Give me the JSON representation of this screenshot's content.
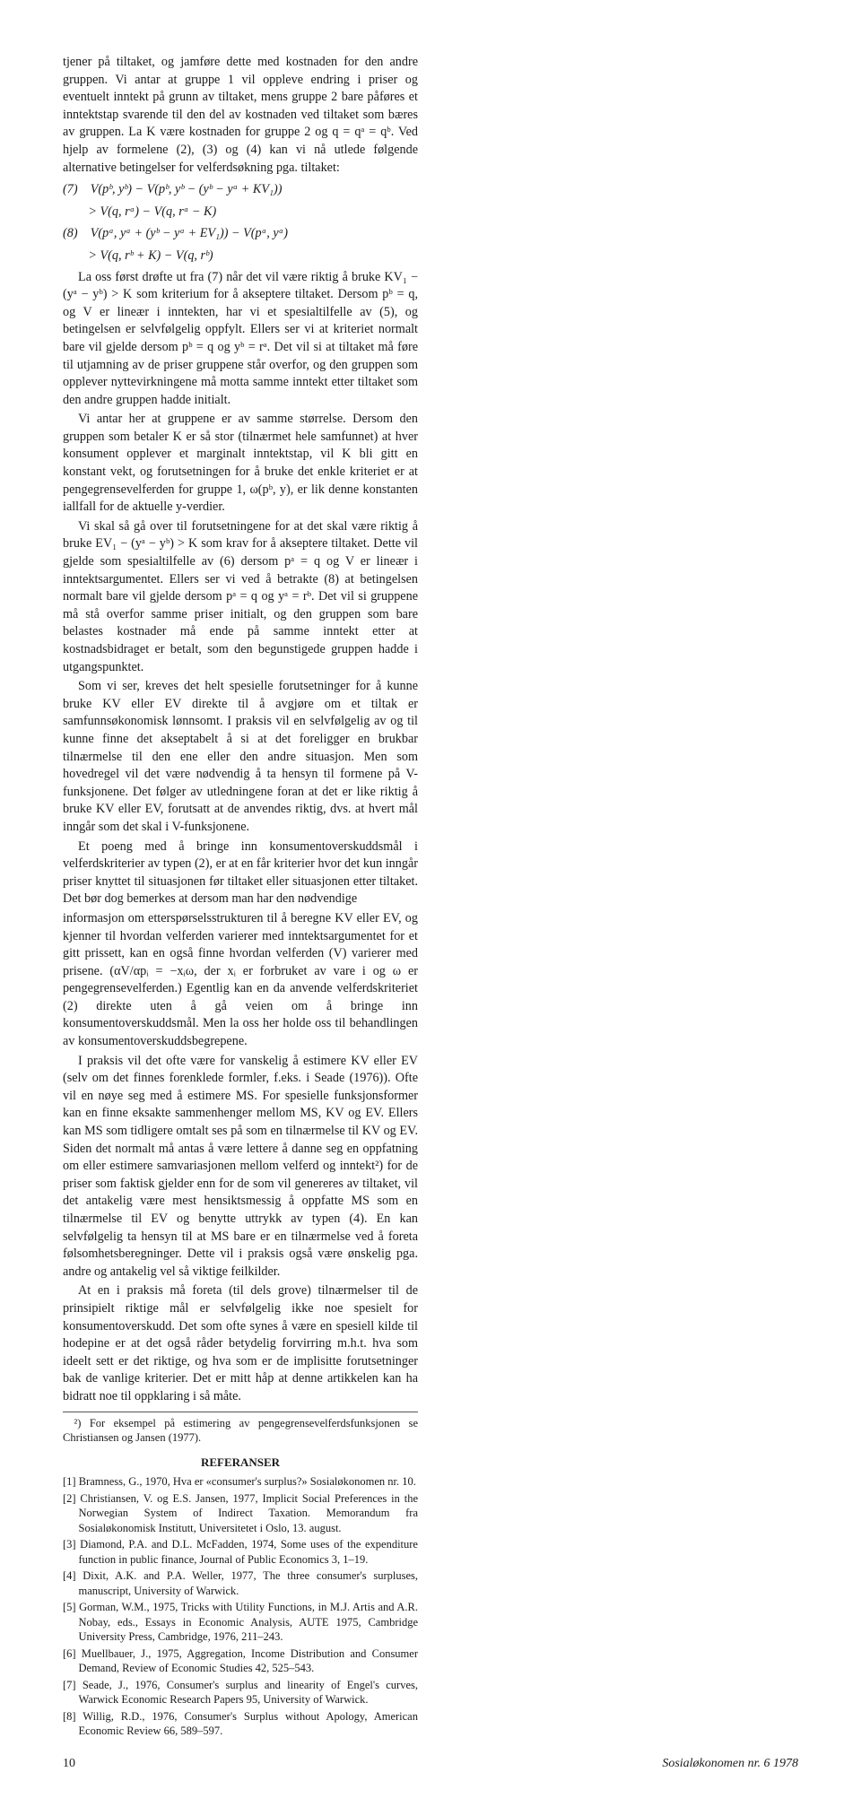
{
  "col1": {
    "p1": "tjener på tiltaket, og jamføre dette med kostnaden for den andre gruppen. Vi antar at gruppe 1 vil oppleve endring i priser og eventuelt inntekt på grunn av tiltaket, mens gruppe 2 bare påføres et inntektstap svarende til den del av kostnaden ved tiltaket som bæres av gruppen. La K være kostnaden for gruppe 2 og q = qᵃ = qᵇ. Ved hjelp av formelene (2), (3) og (4) kan vi nå utlede følgende alternative betingelser for velferdsøkning pga. tiltaket:",
    "f7a": "(7) V(pᵇ, yᵇ) − V(pᵇ, yᵇ − (yᵇ − yᵃ + KV₁))",
    "f7b": "  > V(q, rᵃ) − V(q, rᵃ − K)",
    "f8a": "(8) V(pᵃ, yᵃ + (yᵇ − yᵃ + EV₁)) − V(pᵃ, yᵃ)",
    "f8b": "  > V(q, rᵇ + K) − V(q, rᵇ)",
    "p2": "La oss først drøfte ut fra (7) når det vil være riktig å bruke KV₁ − (yᵃ − yᵇ) > K som kriterium for å akseptere tiltaket. Dersom pᵇ = q, og V er lineær i inntekten, har vi et spesialtilfelle av (5), og betingelsen er selvfølgelig oppfylt. Ellers ser vi at kriteriet normalt bare vil gjelde dersom pᵇ = q og yᵇ = rᵃ. Det vil si at tiltaket må føre til utjamning av de priser gruppene står overfor, og den gruppen som opplever nyttevirkningene må motta samme inntekt etter tiltaket som den andre gruppen hadde initialt.",
    "p3": "Vi antar her at gruppene er av samme størrelse. Dersom den gruppen som betaler K er så stor (tilnærmet hele samfunnet) at hver konsument opplever et marginalt inntektstap, vil K bli gitt en konstant vekt, og forutsetningen for å bruke det enkle kriteriet er at pengegrensevelferden for gruppe 1, ω(pᵇ, y), er lik denne konstanten iallfall for de aktuelle y-verdier.",
    "p4": "Vi skal så gå over til forutsetningene for at det skal være riktig å bruke EV₁ − (yᵃ − yᵇ) > K som krav for å akseptere tiltaket. Dette vil gjelde som spesialtilfelle av (6) dersom pᵃ = q og V er lineær i inntektsargumentet. Ellers ser vi ved å betrakte (8) at betingelsen normalt bare vil gjelde dersom pᵃ = q og yᵃ = rᵇ. Det vil si gruppene må stå overfor samme priser initialt, og den gruppen som bare belastes kostnader må ende på samme inntekt etter at kostnadsbidraget er betalt, som den begunstigede gruppen hadde i utgangspunktet.",
    "p5": "Som vi ser, kreves det helt spesielle forutsetninger for å kunne bruke KV eller EV direkte til å avgjøre om et tiltak er samfunnsøkonomisk lønnsomt. I praksis vil en selvfølgelig av og til kunne finne det akseptabelt å si at det foreligger en brukbar tilnærmelse til den ene eller den andre situasjon. Men som hovedregel vil det være nødvendig å ta hensyn til formene på V-funksjonene. Det følger av utledningene foran at det er like riktig å bruke KV eller EV, forutsatt at de anvendes riktig, dvs. at hvert mål inngår som det skal i V-funksjonene.",
    "p6": "Et poeng med å bringe inn konsumentoverskuddsmål i velferdskriterier av typen (2), er at en får kriterier hvor det kun inngår priser knyttet til situasjonen før tiltaket eller situasjonen etter tiltaket. Det bør dog bemerkes at dersom man har den nødvendige"
  },
  "col2": {
    "p1": "informasjon om etterspørselsstrukturen til å beregne KV eller EV, og kjenner til hvordan velferden varierer med inntektsargumentet for et gitt prissett, kan en også finne hvordan velferden (V) varierer med prisene. (αV/αpᵢ = −xᵢω, der xᵢ er forbruket av vare i og ω er pengegrensevelferden.) Egentlig kan en da anvende velferdskriteriet (2) direkte uten å gå veien om å bringe inn konsumentoverskuddsmål. Men la oss her holde oss til behandlingen av konsumentoverskuddsbegrepene.",
    "p2": "I praksis vil det ofte være for vanskelig å estimere KV eller EV (selv om det finnes forenklede formler, f.eks. i Seade (1976)). Ofte vil en nøye seg med å estimere MS. For spesielle funksjonsformer kan en finne eksakte sammenhenger mellom MS, KV og EV. Ellers kan MS som tidligere omtalt ses på som en tilnærmelse til KV og EV. Siden det normalt må antas å være lettere å danne seg en oppfatning om eller estimere samvariasjonen mellom velferd og inntekt²) for de priser som faktisk gjelder enn for de som vil genereres av tiltaket, vil det antakelig være mest hensiktsmessig å oppfatte MS som en tilnærmelse til EV og benytte uttrykk av typen (4). En kan selvfølgelig ta hensyn til at MS bare er en tilnærmelse ved å foreta følsomhetsberegninger. Dette vil i praksis også være ønskelig pga. andre og antakelig vel så viktige feilkilder.",
    "p3": "At en i praksis må foreta (til dels grove) tilnærmelser til de prinsipielt riktige mål er selvfølgelig ikke noe spesielt for konsumentoverskudd. Det som ofte synes å være en spesiell kilde til hodepine er at det også råder betydelig forvirring m.h.t. hva som ideelt sett er det riktige, og hva som er de implisitte forutsetninger bak de vanlige kriterier. Det er mitt håp at denne artikkelen kan ha bidratt noe til oppklaring i så måte.",
    "fn": "²) For eksempel på estimering av pengegrensevelferdsfunksjonen se Christiansen og Jansen (1977).",
    "refheader": "REFERANSER",
    "refs": [
      "[1] Bramness, G., 1970, Hva er «consumer's surplus?» Sosialøkonomen nr. 10.",
      "[2] Christiansen, V. og E.S. Jansen, 1977, Implicit Social Preferences in the Norwegian System of Indirect Taxation. Memorandum fra Sosialøkonomisk Institutt, Universitetet i Oslo, 13. august.",
      "[3] Diamond, P.A. and D.L. McFadden, 1974, Some uses of the expenditure function in public finance, Journal of Public Economics 3, 1–19.",
      "[4] Dixit, A.K. and P.A. Weller, 1977, The three consumer's surpluses, manuscript, University of Warwick.",
      "[5] Gorman, W.M., 1975, Tricks with Utility Functions, in M.J. Artis and A.R. Nobay, eds., Essays in Economic Analysis, AUTE 1975, Cambridge University Press, Cambridge, 1976, 211–243.",
      "[6] Muellbauer, J., 1975, Aggregation, Income Distribution and Consumer Demand, Review of Economic Studies 42, 525–543.",
      "[7] Seade, J., 1976, Consumer's surplus and linearity of Engel's curves, Warwick Economic Research Papers 95, University of Warwick.",
      "[8] Willig, R.D., 1976, Consumer's Surplus without Apology, American Economic Review 66, 589–597."
    ]
  },
  "footer": {
    "pageno": "10",
    "journal": "Sosialøkonomen nr. 6 1978"
  }
}
